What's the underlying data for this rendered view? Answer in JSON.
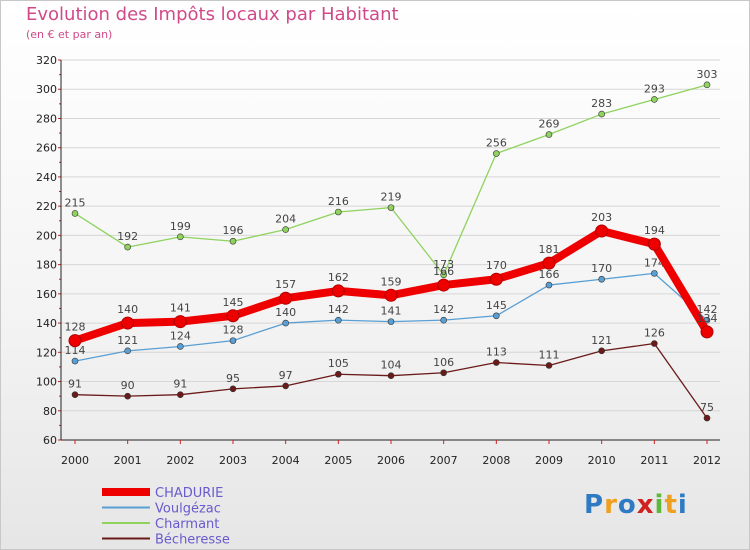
{
  "chart_data": {
    "type": "line",
    "title": "Evolution des Impôts locaux par Habitant",
    "subtitle": "(en € et par an)",
    "categories": [
      "2000",
      "2001",
      "2002",
      "2003",
      "2004",
      "2005",
      "2006",
      "2007",
      "2008",
      "2009",
      "2010",
      "2011",
      "2012"
    ],
    "ylim": [
      60,
      320
    ],
    "yticks": [
      60,
      80,
      100,
      120,
      140,
      160,
      180,
      200,
      220,
      240,
      260,
      280,
      300,
      320
    ],
    "grid": "horizontal",
    "legend_position": "bottom-left",
    "series": [
      {
        "name": "Bécheresse",
        "color": "#6b1a1a",
        "values": [
          91,
          90,
          91,
          95,
          97,
          105,
          104,
          106,
          113,
          111,
          121,
          126,
          75
        ]
      },
      {
        "name": "Charmant",
        "color": "#8fd25e",
        "values": [
          215,
          192,
          199,
          196,
          204,
          216,
          219,
          173,
          256,
          269,
          283,
          293,
          303
        ]
      },
      {
        "name": "Voulgézac",
        "color": "#5a9fd4",
        "values": [
          114,
          121,
          124,
          128,
          140,
          142,
          141,
          142,
          145,
          166,
          170,
          174,
          142
        ]
      },
      {
        "name": "CHADURIE",
        "color": "#ee0000",
        "values": [
          128,
          140,
          141,
          145,
          157,
          162,
          159,
          166,
          170,
          181,
          203,
          194,
          134
        ]
      }
    ]
  },
  "legend": [
    "CHADURIE",
    "Voulgézac",
    "Charmant",
    "Bécheresse"
  ],
  "logo": {
    "text": "Proxiti",
    "letters": [
      "P",
      "r",
      "o",
      "x",
      "i",
      "t",
      "i"
    ],
    "colors": [
      "#2e7bc4",
      "#f0a020",
      "#2e7bc4",
      "#d02020",
      "#5fb83a",
      "#f0a020",
      "#2e7bc4"
    ]
  }
}
